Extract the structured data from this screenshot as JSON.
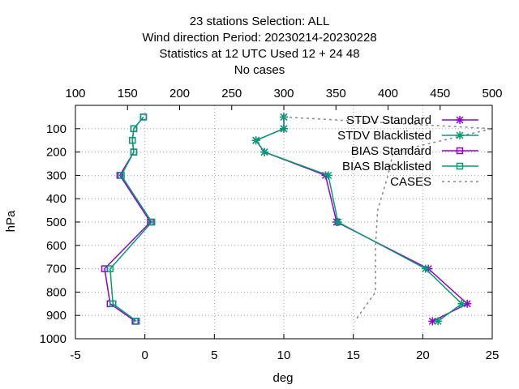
{
  "title_lines": [
    "23 stations Selection: ALL",
    "Wind direction  Period: 20230214-20230228",
    "Statistics at 12 UTC  Used  12  + 24 48",
    "No cases"
  ],
  "chart_data": {
    "type": "line",
    "xlabel": "deg",
    "ylabel": "hPa",
    "xlim": [
      -5,
      25
    ],
    "xticks": [
      -5,
      0,
      5,
      10,
      15,
      20,
      25
    ],
    "ylim": [
      1000,
      0
    ],
    "yticks": [
      100,
      200,
      300,
      400,
      500,
      600,
      700,
      800,
      900,
      1000
    ],
    "x2lim": [
      100,
      500
    ],
    "x2ticks": [
      100,
      150,
      200,
      250,
      300,
      350,
      400,
      450,
      500
    ],
    "grid": true,
    "legend_position": "top-right",
    "series": [
      {
        "name": "STDV Standard",
        "color": "#9400d3",
        "marker": "star",
        "points": [
          [
            10,
            50
          ],
          [
            10,
            100
          ],
          [
            8,
            150
          ],
          [
            8.6,
            200
          ],
          [
            13,
            300
          ],
          [
            13.8,
            500
          ],
          [
            20.4,
            700
          ],
          [
            23.2,
            850
          ],
          [
            20.7,
            925
          ]
        ]
      },
      {
        "name": "STDV Blacklisted",
        "color": "#009e73",
        "marker": "star",
        "points": [
          [
            10,
            50
          ],
          [
            10,
            100
          ],
          [
            8,
            150
          ],
          [
            8.6,
            200
          ],
          [
            13.2,
            300
          ],
          [
            13.9,
            500
          ],
          [
            20.2,
            700
          ],
          [
            22.8,
            850
          ],
          [
            21.1,
            925
          ]
        ]
      },
      {
        "name": "BIAS Standard",
        "color": "#9400d3",
        "marker": "square",
        "points": [
          [
            -0.1,
            50
          ],
          [
            -0.8,
            100
          ],
          [
            -0.9,
            150
          ],
          [
            -0.8,
            200
          ],
          [
            -1.8,
            300
          ],
          [
            0.4,
            500
          ],
          [
            -2.9,
            700
          ],
          [
            -2.5,
            850
          ],
          [
            -0.7,
            925
          ]
        ]
      },
      {
        "name": "BIAS Blacklisted",
        "color": "#009e73",
        "marker": "square",
        "points": [
          [
            -0.1,
            50
          ],
          [
            -0.8,
            100
          ],
          [
            -0.9,
            150
          ],
          [
            -0.8,
            200
          ],
          [
            -1.7,
            300
          ],
          [
            0.5,
            500
          ],
          [
            -2.5,
            700
          ],
          [
            -2.3,
            850
          ],
          [
            -0.6,
            925
          ]
        ]
      },
      {
        "name": "CASES",
        "color": "#888888",
        "marker": "none",
        "dashed": true,
        "axis": "x2",
        "points": [
          [
            300,
            50
          ],
          [
            500,
            100
          ],
          [
            405,
            200
          ],
          [
            400,
            300
          ],
          [
            390,
            450
          ],
          [
            388,
            600
          ],
          [
            388,
            800
          ],
          [
            368,
            925
          ]
        ]
      }
    ]
  }
}
